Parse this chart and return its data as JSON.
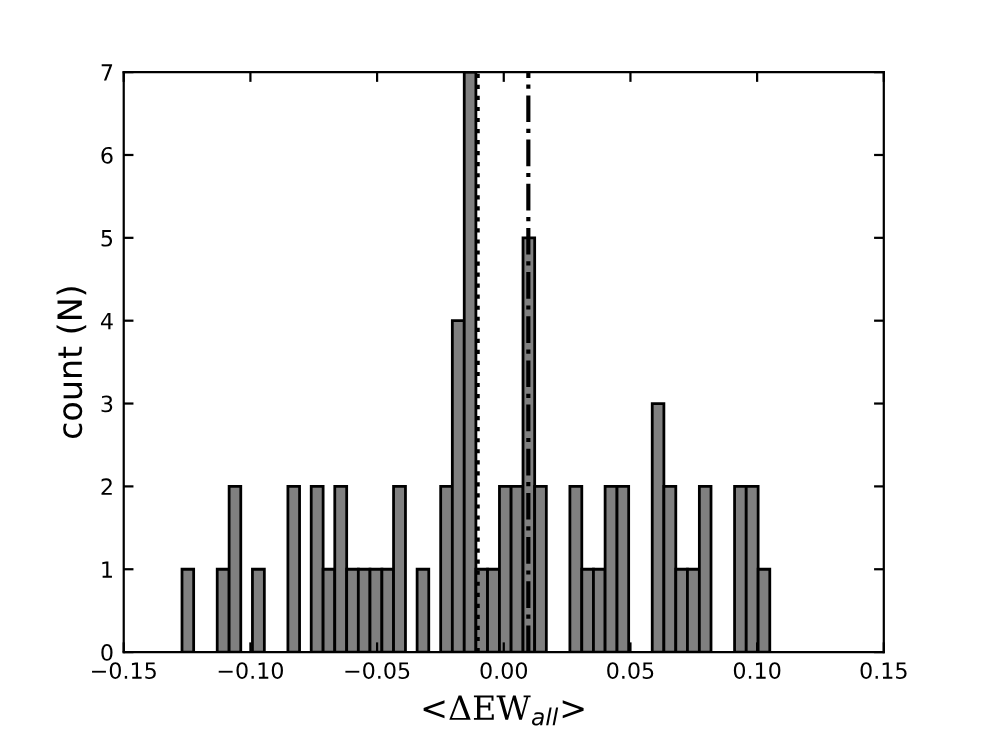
{
  "chart_data": {
    "type": "histogram",
    "xlabel": "<ΔEW$_{all}$>",
    "ylabel": "count (N)",
    "color": "#808080",
    "bins": [
      -0.127,
      -0.1224,
      -0.1177,
      -0.1131,
      -0.1084,
      -0.1038,
      -0.0992,
      -0.0945,
      -0.0899,
      -0.0852,
      -0.0806,
      -0.076,
      -0.0713,
      -0.0667,
      -0.062,
      -0.0574,
      -0.0528,
      -0.0481,
      -0.0435,
      -0.0388,
      -0.0342,
      -0.0296,
      -0.0249,
      -0.0203,
      -0.0156,
      -0.011,
      -0.0064,
      -0.0017,
      0.0029,
      0.0076,
      0.0122,
      0.0168,
      0.0215,
      0.0261,
      0.0308,
      0.0354,
      0.04,
      0.0447,
      0.0493,
      0.054,
      0.0586,
      0.0632,
      0.0679,
      0.0725,
      0.0772,
      0.0818,
      0.0864,
      0.0911,
      0.0957,
      0.1004,
      0.105
    ],
    "values": [
      1,
      0,
      0,
      1,
      2,
      0,
      1,
      0,
      0,
      2,
      0,
      2,
      1,
      2,
      1,
      1,
      1,
      1,
      2,
      0,
      1,
      0,
      2,
      4,
      7,
      1,
      1,
      2,
      2,
      5,
      2,
      0,
      0,
      2,
      1,
      1,
      2,
      2,
      0,
      0,
      3,
      2,
      1,
      1,
      2,
      0,
      0,
      2,
      2,
      1
    ],
    "xlim": [
      -0.15,
      0.15
    ],
    "xticks": [
      {
        "value": -0.15,
        "label": "−0.15"
      },
      {
        "value": -0.1,
        "label": "−0.10"
      },
      {
        "value": -0.05,
        "label": "−0.05"
      },
      {
        "value": 0,
        "label": "0.00"
      },
      {
        "value": 0.05,
        "label": "0.05"
      },
      {
        "value": 0.1,
        "label": "0.10"
      },
      {
        "value": 0.15,
        "label": "0.15"
      }
    ],
    "ylim": [
      0,
      7
    ],
    "yticks": [
      0,
      1,
      2,
      3,
      4,
      5,
      6,
      7
    ],
    "ref_lines": [
      {
        "axis": "x",
        "value": -0.0103,
        "color": "#000000",
        "line_style": "dotted"
      },
      {
        "axis": "x",
        "value": 0.0097,
        "color": "#000000",
        "line_style": "dashdot"
      }
    ]
  }
}
